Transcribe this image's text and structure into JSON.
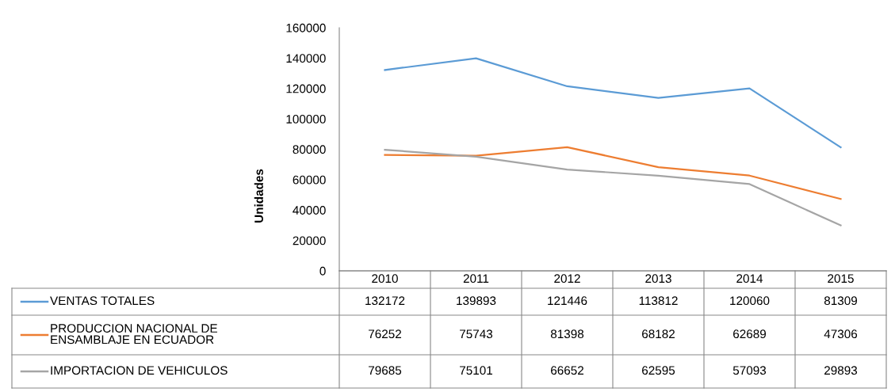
{
  "chart_data": {
    "type": "line",
    "ylabel": "Unidades",
    "categories": [
      "2010",
      "2011",
      "2012",
      "2013",
      "2014",
      "2015"
    ],
    "series": [
      {
        "name": "VENTAS TOTALES",
        "color": "#5b9bd5",
        "values": [
          132172,
          139893,
          121446,
          113812,
          120060,
          81309
        ]
      },
      {
        "name": "PRODUCCION NACIONAL DE\nENSAMBLAJE EN ECUADOR",
        "color": "#ed7d31",
        "values": [
          76252,
          75743,
          81398,
          68182,
          62689,
          47306
        ]
      },
      {
        "name": "IMPORTACION DE VEHICULOS",
        "color": "#a5a5a5",
        "values": [
          79685,
          75101,
          66652,
          62595,
          57093,
          29893
        ]
      }
    ],
    "ylim": [
      0,
      160000
    ],
    "yticks": [
      0,
      20000,
      40000,
      60000,
      80000,
      100000,
      120000,
      140000,
      160000
    ],
    "data_labels": true,
    "grid": false,
    "legend": "bottom"
  }
}
